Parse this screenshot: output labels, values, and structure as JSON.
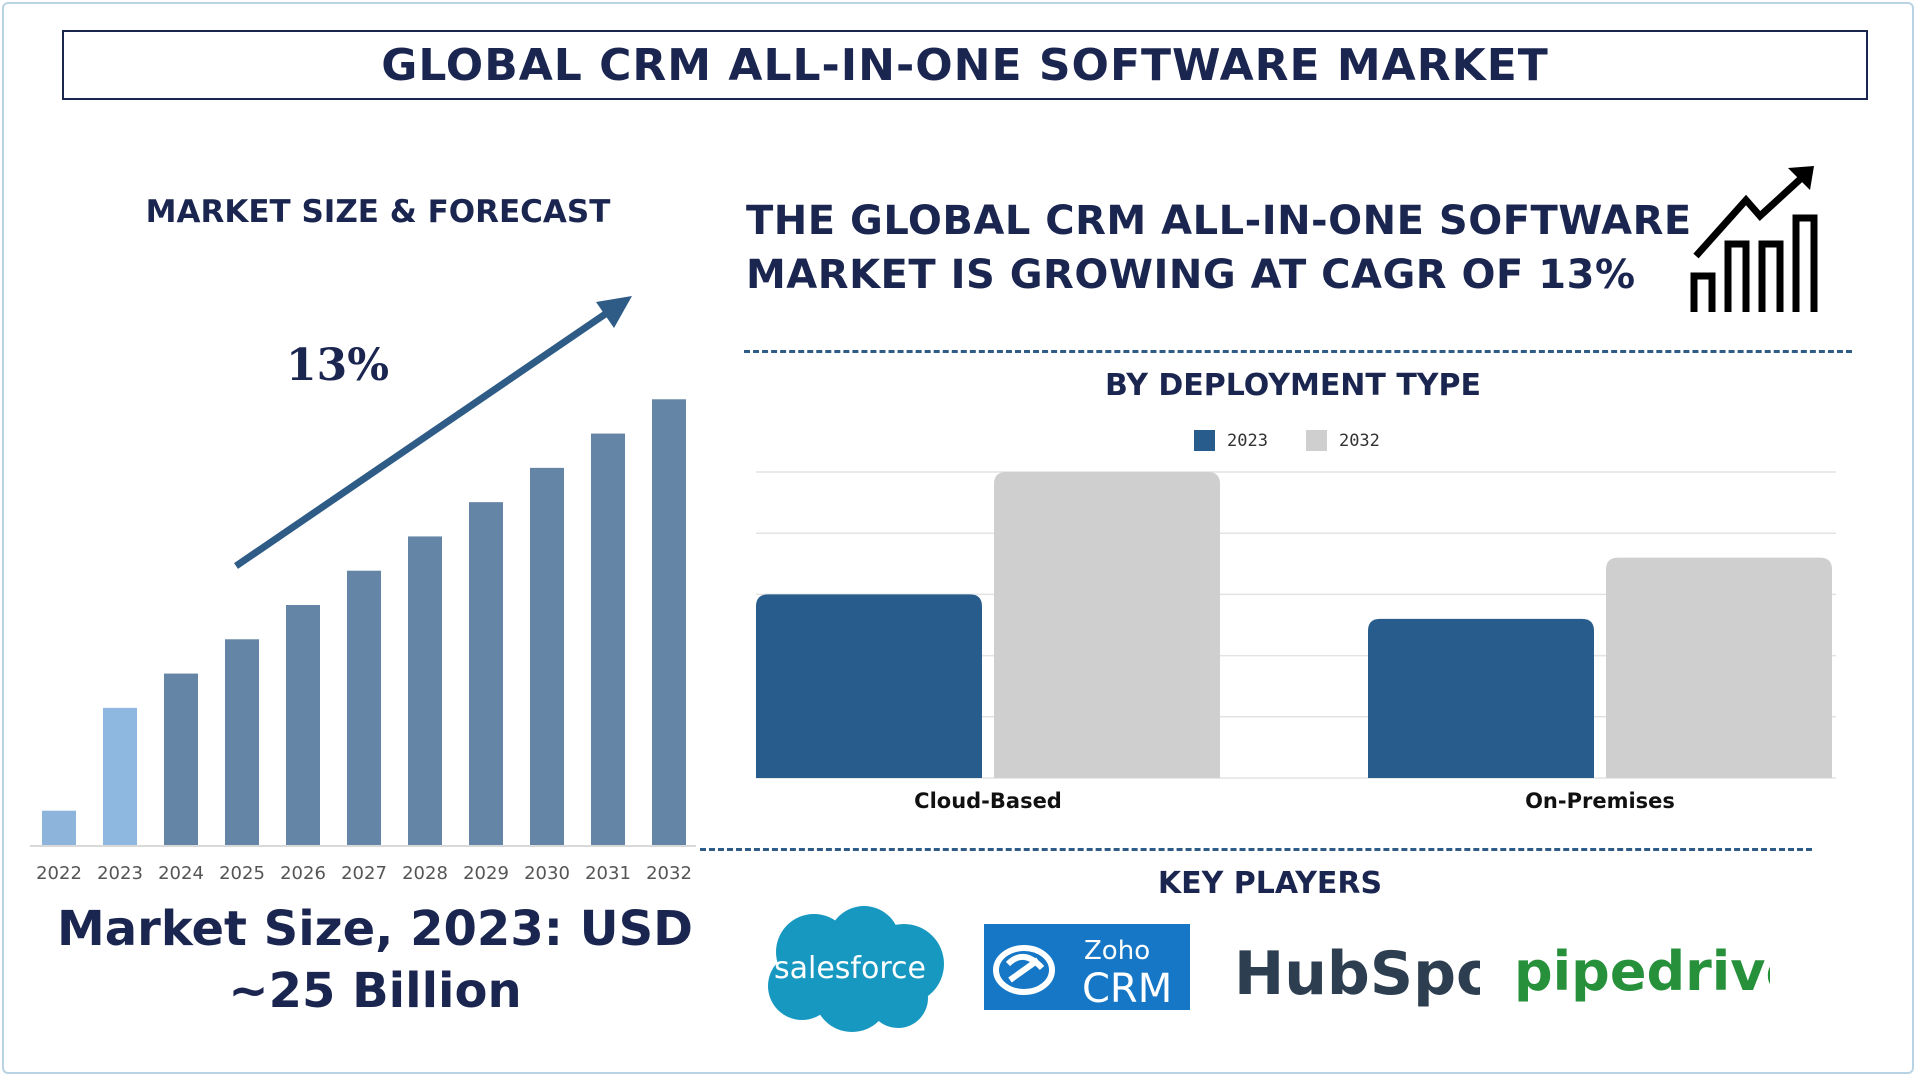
{
  "title": "GLOBAL CRM ALL-IN-ONE SOFTWARE MARKET",
  "left_panel": {
    "heading": "MARKET SIZE & FORECAST",
    "cagr_label": "13%",
    "market_size_line1": "Market Size, 2023: USD",
    "market_size_line2": "~25 Billion"
  },
  "right_panel": {
    "headline_line1": "THE GLOBAL CRM ALL-IN-ONE SOFTWARE",
    "headline_line2": "MARKET IS GROWING AT CAGR OF 13%",
    "deployment_heading": "BY DEPLOYMENT TYPE",
    "key_players_heading": "KEY PLAYERS",
    "icon": "growth-chart-icon"
  },
  "key_players": [
    {
      "name": "salesforce",
      "icon": "salesforce-logo"
    },
    {
      "name": "Zoho",
      "sub": "CRM",
      "icon": "zoho-crm-logo"
    },
    {
      "name": "HubSpot",
      "icon": "hubspot-logo"
    },
    {
      "name": "pipedrive",
      "icon": "pipedrive-logo"
    }
  ],
  "colors": {
    "navy": "#1b2650",
    "bar_forecast": "#6585a6",
    "bar_2022": "#8db5dc",
    "bar_2023": "#8fb8e0",
    "series_2023": "#285c8c",
    "series_2032": "#cfcfcf"
  },
  "chart_data": [
    {
      "type": "bar",
      "categories": [
        "2022",
        "2023",
        "2024",
        "2025",
        "2026",
        "2027",
        "2028",
        "2029",
        "2030",
        "2031",
        "2032"
      ],
      "values": [
        3,
        12,
        15,
        18,
        21,
        24,
        27,
        30,
        33,
        36,
        39
      ],
      "ylim": [
        0,
        42
      ],
      "grid": false,
      "legend": "none",
      "highlight": [
        "2022",
        "2023"
      ]
    },
    {
      "type": "bar",
      "categories": [
        "Cloud-Based",
        "On-Premises"
      ],
      "series": [
        {
          "name": "2023",
          "values": [
            3.0,
            2.6
          ]
        },
        {
          "name": "2032",
          "values": [
            5.0,
            3.6
          ]
        }
      ],
      "ylim": [
        0,
        5
      ],
      "grid": true,
      "legend": "top-center"
    }
  ]
}
